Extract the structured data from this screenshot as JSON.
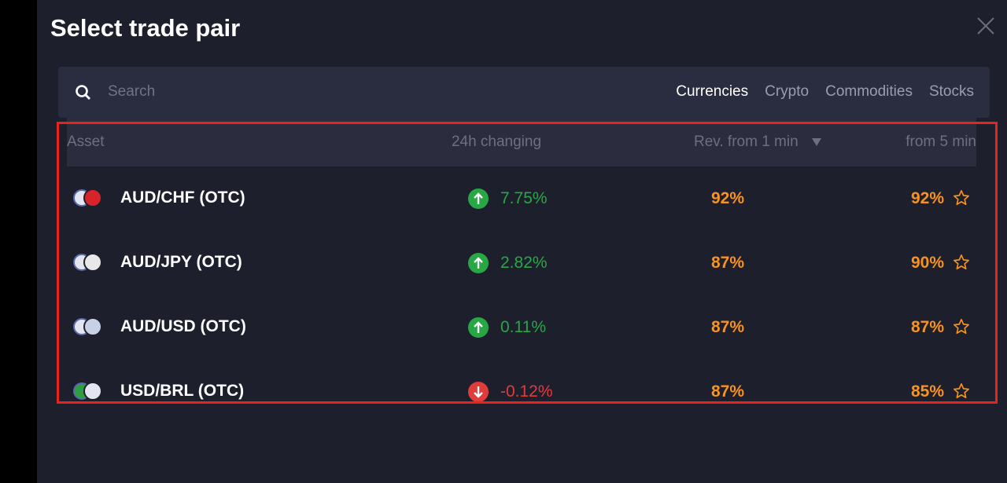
{
  "header": {
    "title": "Select trade pair"
  },
  "search": {
    "placeholder": "Search"
  },
  "tabs": [
    "Currencies",
    "Crypto",
    "Commodities",
    "Stocks"
  ],
  "table": {
    "columns": [
      "Asset",
      "24h changing",
      "Rev. from 1 min",
      "from 5 min"
    ],
    "rows": [
      [
        "AUD/CHF (OTC)",
        "7.75%",
        "92%",
        "92%"
      ],
      [
        "AUD/JPY (OTC)",
        "2.82%",
        "87%",
        "90%"
      ],
      [
        "AUD/USD (OTC)",
        "0.11%",
        "87%",
        "87%"
      ],
      [
        "USD/BRL (OTC)",
        "-0.12%",
        "87%",
        "85%"
      ]
    ]
  }
}
